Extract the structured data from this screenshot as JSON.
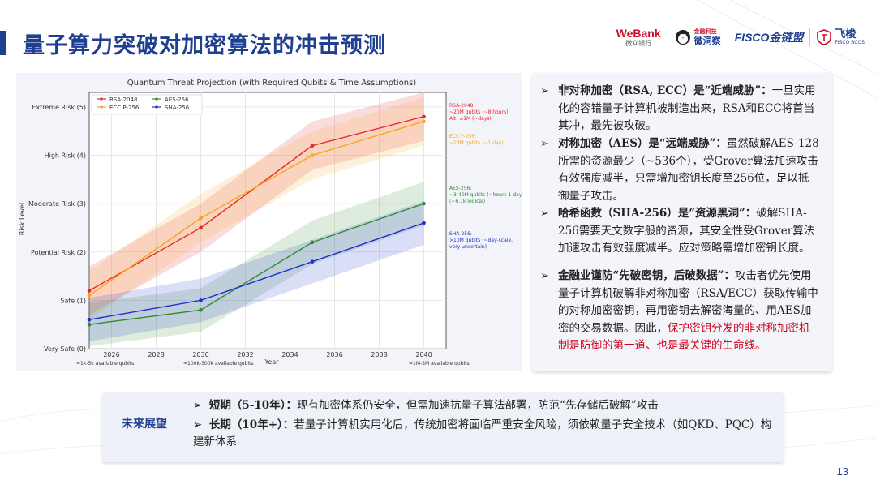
{
  "slide": {
    "title": "量子算力突破对加密算法的冲击预测",
    "page_number": "13"
  },
  "logos": [
    {
      "main": "WeBank",
      "sub": "微众银行"
    },
    {
      "main": "金融科技",
      "sub": "微洞察"
    },
    {
      "main": "FISCO金链盟",
      "sub": ""
    },
    {
      "main": "飞梭",
      "sub": "FISCO BCOS"
    }
  ],
  "colors": {
    "accent": "#1f3f8f",
    "rsa": "#e8262b",
    "ecc": "#f6a51c",
    "aes": "#2e8b2e",
    "sha": "#1f2fcf",
    "highlight": "#d0021b"
  },
  "chart_data": {
    "type": "line",
    "title": "Quantum Threat Projection (with Required Qubits & Time Assumptions)",
    "xlabel": "Year",
    "ylabel": "Risk Level",
    "xlim": [
      2025,
      2041
    ],
    "ylim": [
      0,
      5.3
    ],
    "xticks": [
      2026,
      2028,
      2030,
      2032,
      2034,
      2036,
      2038,
      2040
    ],
    "yticks": [
      {
        "value": 0,
        "label": "Very Safe (0)"
      },
      {
        "value": 1,
        "label": "Safe (1)"
      },
      {
        "value": 2,
        "label": "Potential Risk (2)"
      },
      {
        "value": 3,
        "label": "Moderate Risk (3)"
      },
      {
        "value": 4,
        "label": "High Risk (4)"
      },
      {
        "value": 5,
        "label": "Extreme Risk (5)"
      }
    ],
    "x": [
      2025,
      2030,
      2035,
      2040
    ],
    "series": [
      {
        "name": "RSA-2048",
        "color": "#e8262b",
        "values": [
          1.2,
          2.5,
          4.2,
          4.8
        ],
        "band": 0.5,
        "annotation": [
          "RSA-2048:",
          "~20M qubits (~8 hours)",
          "Alt: ≤1M (~days)"
        ]
      },
      {
        "name": "ECC P-256",
        "color": "#f6a51c",
        "values": [
          1.1,
          2.7,
          4.0,
          4.7
        ],
        "band": 0.5,
        "annotation": [
          "ECC P-256:",
          "~13M qubits (~1 day)"
        ]
      },
      {
        "name": "AES-256",
        "color": "#2e8b2e",
        "values": [
          0.5,
          0.8,
          2.2,
          3.0
        ],
        "band": 0.45,
        "annotation": [
          "AES-256:",
          "~3-40M qubits (~hours-1 day)",
          "(~6.7k logical)"
        ]
      },
      {
        "name": "SHA-256",
        "color": "#1f2fcf",
        "values": [
          0.6,
          1.0,
          1.8,
          2.6
        ],
        "band": 0.45,
        "annotation": [
          "SHA-256:",
          ">10M qubits (~day-scale,",
          "very uncertain)"
        ]
      }
    ],
    "bottom_notes": [
      "≈1k-5k available qubits",
      "≈100k-300k available qubits",
      "≈1M-3M available qubits"
    ],
    "legend": "top-left"
  },
  "bullets": [
    {
      "head": "非对称加密（RSA, ECC）是“近端威胁”：",
      "body": "一旦实用化的容错量子计算机被制造出来，RSA和ECC将首当其冲，最先被攻破。"
    },
    {
      "head": "对称加密（AES）是“远端威胁”：",
      "body": "虽然破解AES-128所需的资源最少（~536个），受Grover算法加速攻击有效强度减半，只需增加密钥长度至256位，足以抵御量子攻击。"
    },
    {
      "head": "哈希函数（SHA-256）是“资源黑洞”：",
      "body": "破解SHA-256需要天文数字般的资源，其安全性受Grover算法加速攻击有效强度减半。应对策略需增加密钥长度。"
    },
    {
      "head": "金融业谨防“先破密钥，后破数据”：",
      "body": "攻击者优先使用量子计算机破解非对称加密（RSA/ECC）获取传输中的对称加密密钥，再用密钥去解密海量的、用AES加密的交易数据。因此，",
      "highlight": "保护密钥分发的非对称加密机制是防御的第一道、也是最关键的生命线。"
    }
  ],
  "future": {
    "label": "未来展望",
    "items": [
      {
        "head": "短期（5-10年）：",
        "body": "现有加密体系仍安全，但需加速抗量子算法部署，防范“先存储后破解”攻击"
      },
      {
        "head": "长期（10年+）：",
        "body": "若量子计算机实用化后，传统加密将面临严重安全风险，须依赖量子安全技术（如QKD、PQC）构建新体系"
      }
    ]
  }
}
